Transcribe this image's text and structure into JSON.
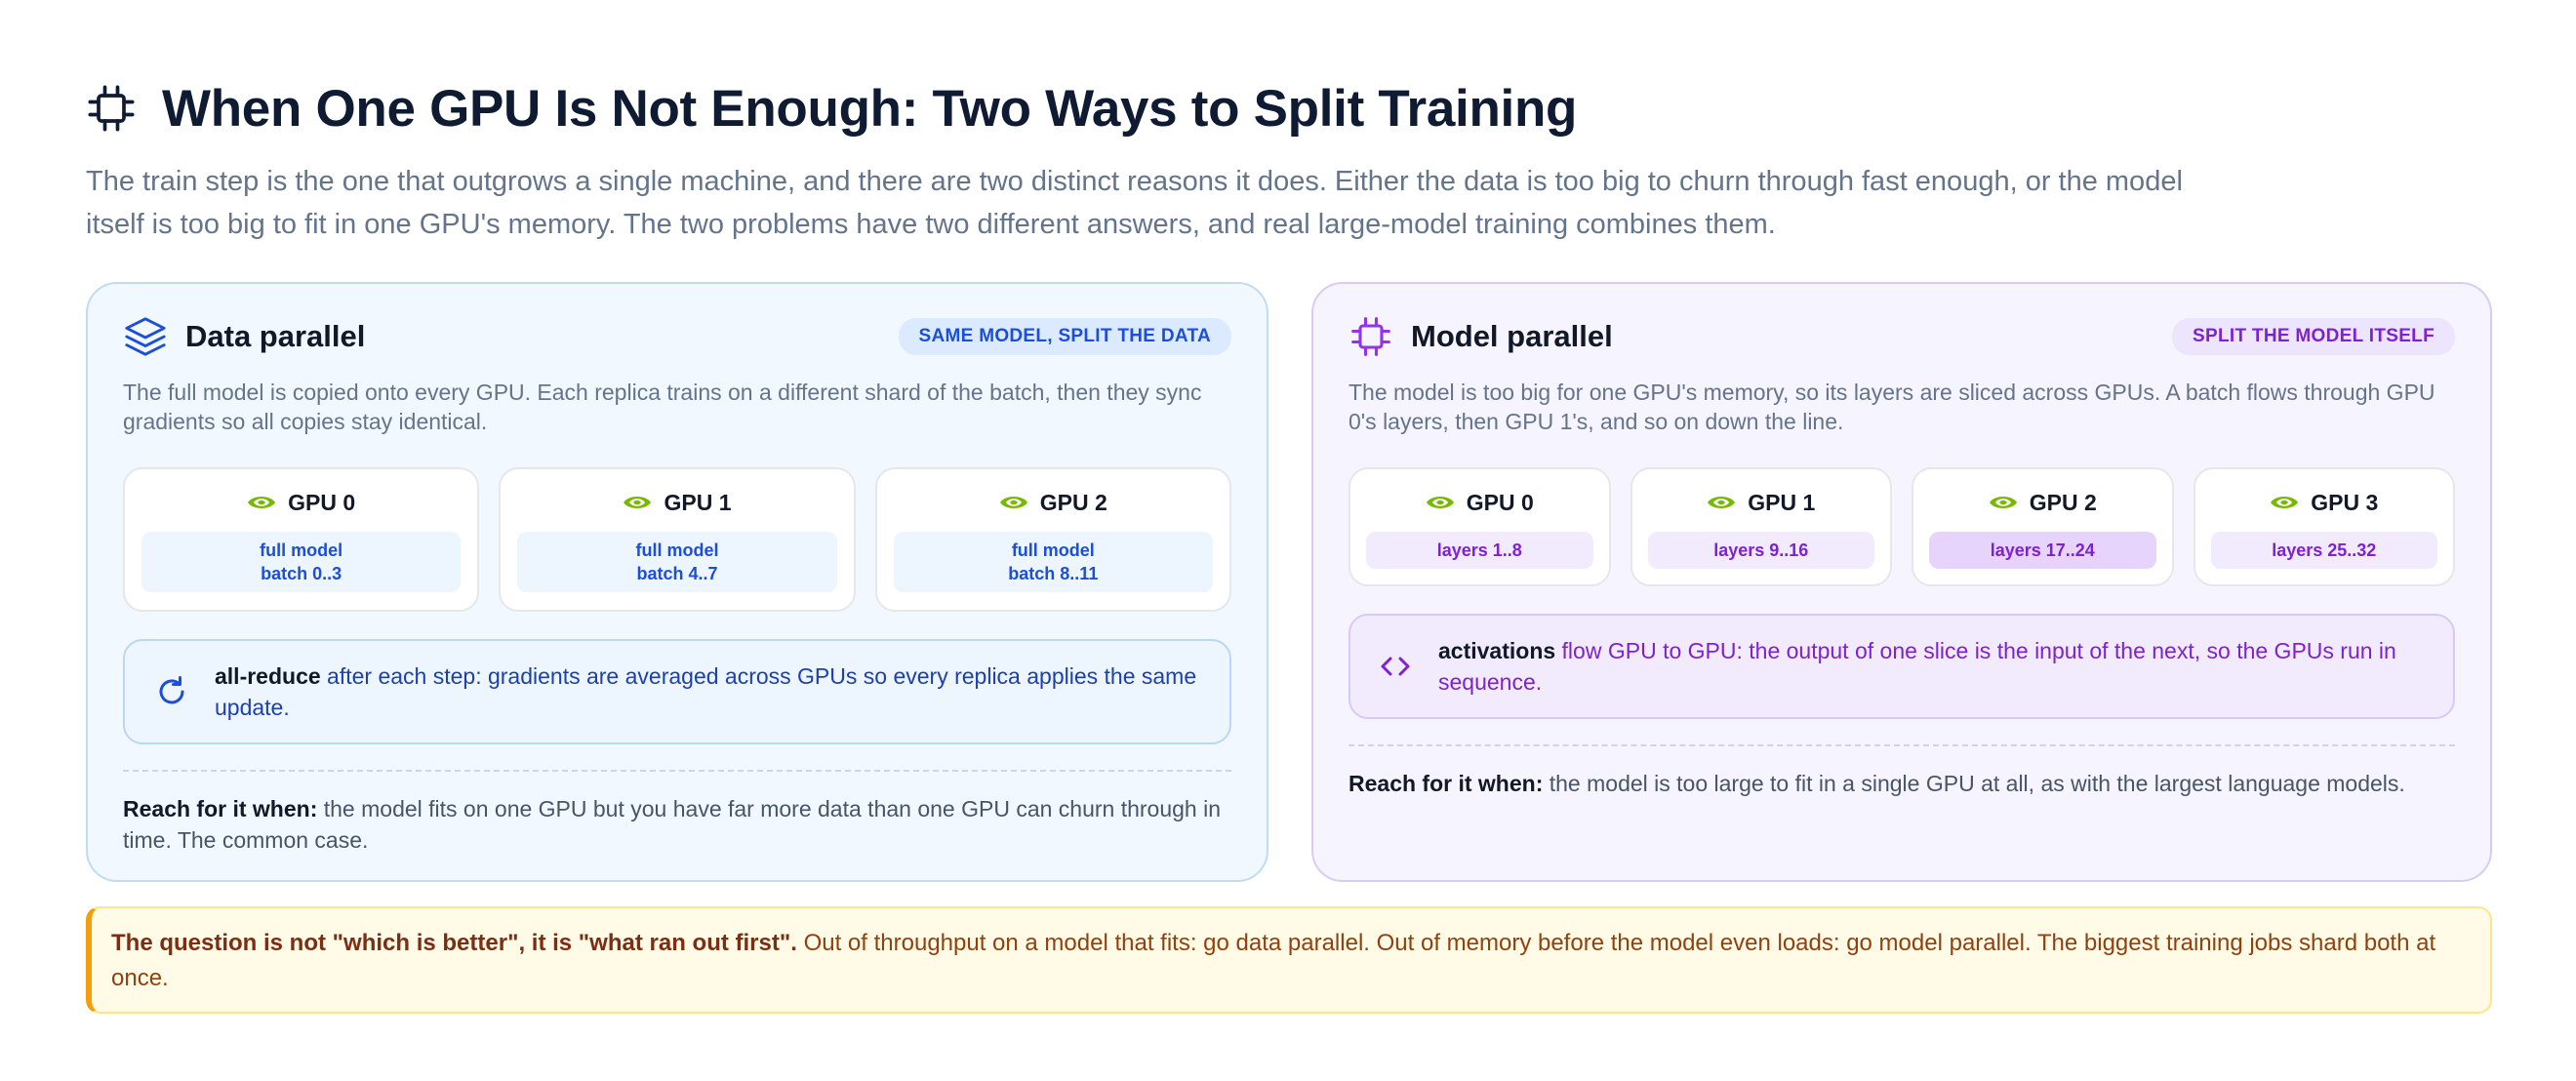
{
  "header": {
    "title": "When One GPU Is Not Enough: Two Ways to Split Training",
    "intro": "The train step is the one that outgrows a single machine, and there are two distinct reasons it does. Either the data is too big to churn through fast enough, or the model itself is too big to fit in one GPU's memory. The two problems have two different answers, and real large-model training combines them."
  },
  "data_parallel": {
    "title": "Data parallel",
    "badge": "SAME MODEL, SPLIT THE DATA",
    "description": "The full model is copied onto every GPU. Each replica trains on a different shard of the batch, then they sync gradients so all copies stay identical.",
    "gpus": [
      {
        "name": "GPU 0",
        "line1": "full model",
        "line2": "batch 0..3"
      },
      {
        "name": "GPU 1",
        "line1": "full model",
        "line2": "batch 4..7"
      },
      {
        "name": "GPU 2",
        "line1": "full model",
        "line2": "batch 8..11"
      }
    ],
    "note_strong": "all-reduce",
    "note_text": " after each step: gradients are averaged across GPUs so every replica applies the same update.",
    "reach_label": "Reach for it when:",
    "reach_text": " the model fits on one GPU but you have far more data than one GPU can churn through in time. The common case."
  },
  "model_parallel": {
    "title": "Model parallel",
    "badge": "SPLIT THE MODEL ITSELF",
    "description": "The model is too big for one GPU's memory, so its layers are sliced across GPUs. A batch flows through GPU 0's layers, then GPU 1's, and so on down the line.",
    "gpus": [
      {
        "name": "GPU 0",
        "layers": "layers 1..8"
      },
      {
        "name": "GPU 1",
        "layers": "layers 9..16"
      },
      {
        "name": "GPU 2",
        "layers": "layers 17..24"
      },
      {
        "name": "GPU 3",
        "layers": "layers 25..32"
      }
    ],
    "note_strong": "activations",
    "note_text": " flow GPU to GPU: the output of one slice is the input of the next, so the GPUs run in sequence.",
    "reach_label": "Reach for it when:",
    "reach_text": " the model is too large to fit in a single GPU at all, as with the largest language models."
  },
  "callout": {
    "strong": "The question is not \"which is better\", it is \"what ran out first\".",
    "text": " Out of throughput on a model that fits: go data parallel. Out of memory before the model even loads: go model parallel. The biggest training jobs shard both at once."
  },
  "colors": {
    "data_accent": "#1d4ed8",
    "model_accent": "#7e22ce",
    "nvidia_green": "#76b900",
    "callout_border": "#f59e0b"
  },
  "icons": {
    "title": "cpu-chip-icon",
    "data_parallel": "layers-stack-icon",
    "model_parallel": "cpu-chip-icon",
    "gpu": "nvidia-eye-icon",
    "all_reduce": "refresh-icon",
    "activations": "code-brackets-icon"
  }
}
